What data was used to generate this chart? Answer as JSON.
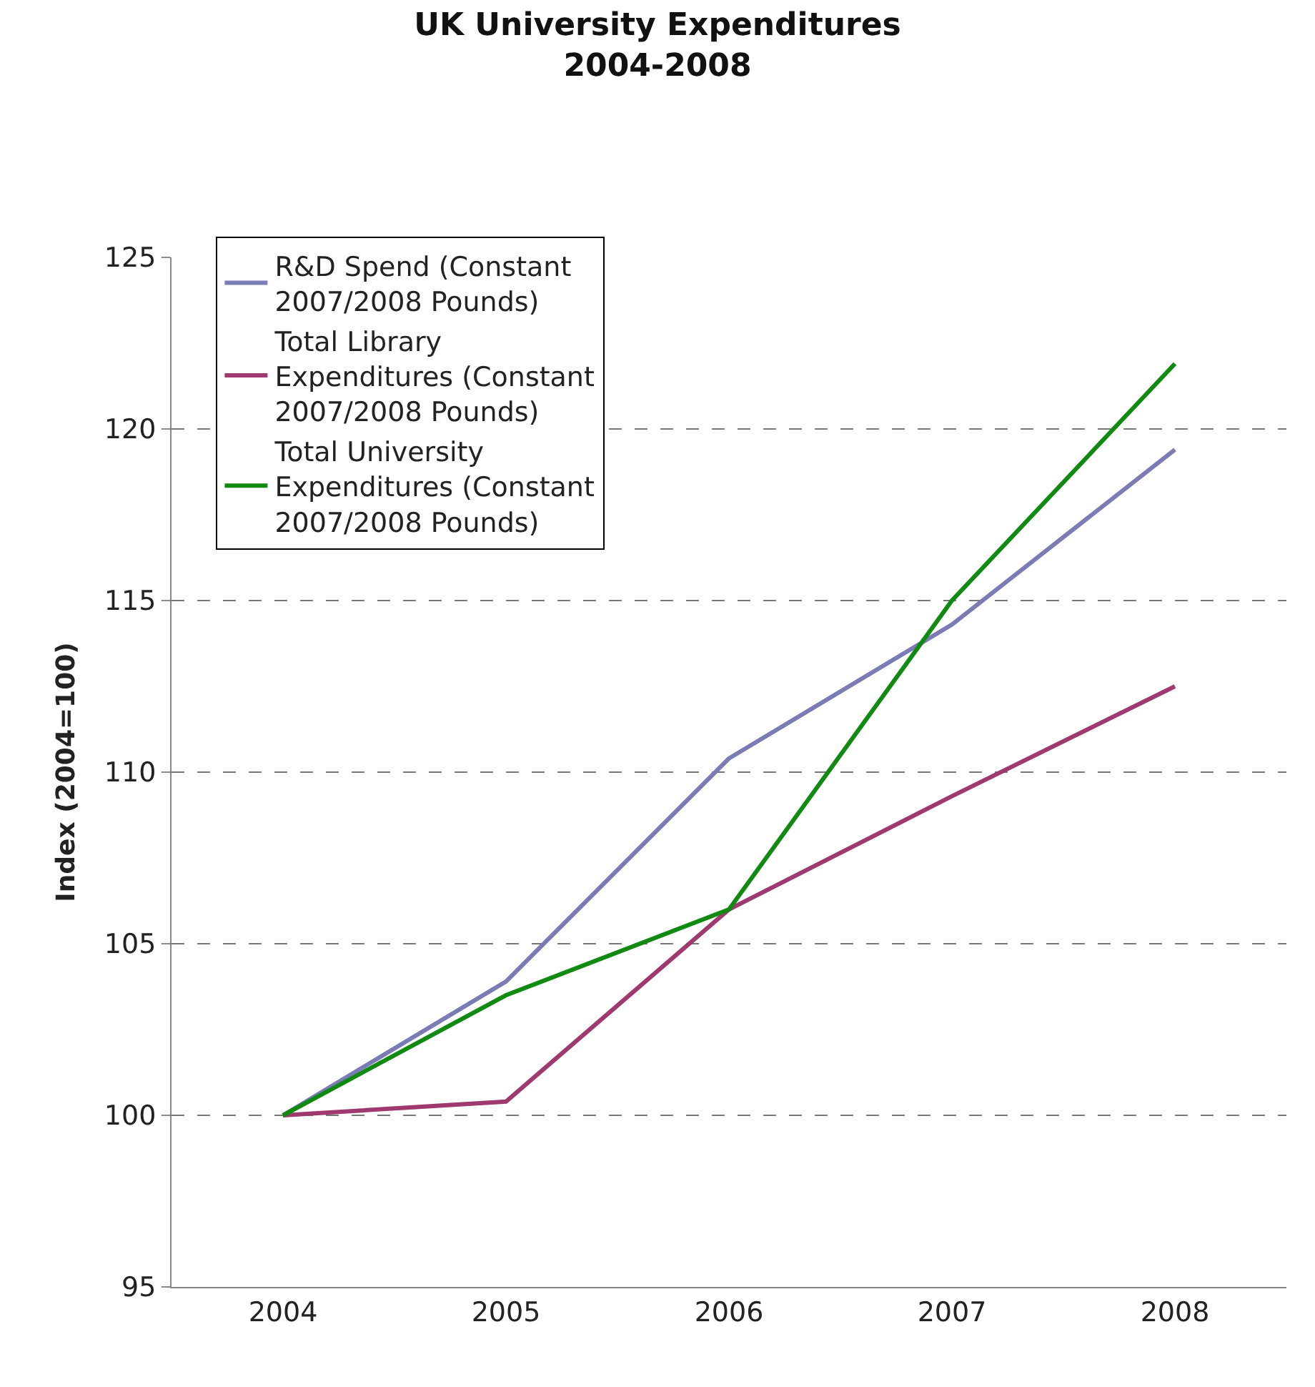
{
  "chart_data": {
    "type": "line",
    "title": "UK University Expenditures\n2004-2008",
    "ylabel": "Index (2004=100)",
    "categories": [
      "2004",
      "2005",
      "2006",
      "2007",
      "2008"
    ],
    "series": [
      {
        "name": "R&D Spend (Constant 2007/2008 Pounds)",
        "color": "#7b7bb5",
        "values": [
          100,
          103.9,
          110.4,
          114.3,
          119.4
        ]
      },
      {
        "name": "Total Library Expenditures (Constant 2007/2008 Pounds)",
        "color": "#9e3a6f",
        "values": [
          100,
          100.4,
          106.0,
          109.3,
          112.5
        ]
      },
      {
        "name": "Total University Expenditures (Constant 2007/2008 Pounds)",
        "color": "#108a10",
        "values": [
          100,
          103.5,
          106.0,
          115.0,
          121.9
        ]
      }
    ],
    "ylim": [
      95,
      125
    ],
    "yticks": [
      95,
      100,
      105,
      110,
      115,
      120,
      125
    ],
    "grid": "y",
    "legend": "top left",
    "marker": "none",
    "line_style": "solid"
  }
}
